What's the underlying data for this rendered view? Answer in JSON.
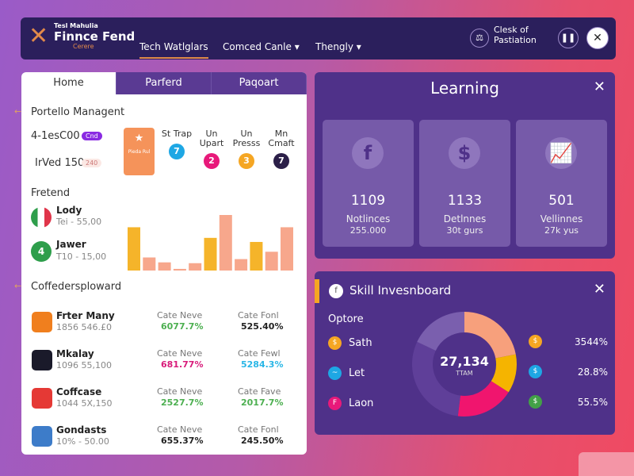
{
  "header": {
    "logo_small": "Tesl Mahulia",
    "logo_main": "Finnce Fend",
    "logo_sub": "Cerere",
    "nav": [
      {
        "label": "Tech Watlglars",
        "active": true
      },
      {
        "label": "Comced Canle ▾"
      },
      {
        "label": "Thengly ▾"
      }
    ],
    "status_line1": "Clesk of",
    "status_line2": "Pastiation",
    "pause_icon": "pause-icon",
    "close_icon": "close-icon"
  },
  "left": {
    "tabs": [
      "Home",
      "Parferd",
      "Paqoart"
    ],
    "portfolio": {
      "title": "Portello Managent",
      "row1": "4-1esC00",
      "row1_badge": "Cnd",
      "row2": "IrVed 150",
      "row2_badge": "240",
      "featured_label": "Pieda Rul",
      "categories": [
        {
          "label": "St Trap",
          "count": "7",
          "color": "#1ea7e4"
        },
        {
          "label": "Un Upart",
          "count": "2",
          "color": "#e8197a"
        },
        {
          "label": "Un Presss",
          "count": "3",
          "color": "#f5a623"
        },
        {
          "label": "Mn Cmaft",
          "count": "7",
          "color": "#2b1f48"
        }
      ]
    },
    "trend": {
      "title": "Fretend",
      "items": [
        {
          "name": "Lody",
          "value": "Tei - 55,00"
        },
        {
          "name": "Jawer",
          "value": "T10 - 15,00",
          "badge": "4"
        }
      ]
    },
    "chart_data": {
      "type": "bar",
      "values": [
        53,
        16,
        10,
        2,
        9,
        40,
        68,
        14,
        35,
        23,
        53
      ],
      "colors": [
        "#f5b42a",
        "#f7a78c",
        "#f7a78c",
        "#f7a78c",
        "#f7a78c",
        "#f5b42a",
        "#f7a78c",
        "#f7a78c",
        "#f5b42a",
        "#f7a78c",
        "#f7a78c"
      ]
    },
    "list": {
      "title": "Coffedersploward",
      "rows": [
        {
          "name": "Frter Many",
          "sub": "1856 546.£0",
          "h1": "Cate Neve",
          "v1": "6077.7%",
          "c1": "#4caf50",
          "h2": "Cate Fonl",
          "v2": "525.40%",
          "c2": "#222",
          "icon_color": "#f07f1e"
        },
        {
          "name": "Mkalay",
          "sub": "1096 55,100",
          "h1": "Cate Neve",
          "v1": "681.77%",
          "c1": "#d81b7a",
          "h2": "Cate Fewl",
          "v2": "5284.3%",
          "c2": "#29b6e6",
          "icon_color": "#1a1a2a"
        },
        {
          "name": "Coffcase",
          "sub": "1044 5X,150",
          "h1": "Cate Neve",
          "v1": "2527.7%",
          "c1": "#4caf50",
          "h2": "Cate Fave",
          "v2": "2017.7%",
          "c2": "#4caf50",
          "icon_color": "#e53935"
        },
        {
          "name": "Gondasts",
          "sub": "10% - 50.00",
          "h1": "Cate Neve",
          "v1": "655.37%",
          "c1": "#222",
          "h2": "Cate Fonl",
          "v2": "245.50%",
          "c2": "#222",
          "icon_color": "#3d7cc9"
        }
      ]
    }
  },
  "learning": {
    "title": "Learning",
    "cards": [
      {
        "icon": "facebook-icon",
        "value": "1109",
        "label": "Notlinces",
        "sub": "255.000"
      },
      {
        "icon": "dollar-icon",
        "value": "1133",
        "label": "Detlnnes",
        "sub": "30t gurs"
      },
      {
        "icon": "growth-chart-icon",
        "value": "501",
        "label": "Vellinnes",
        "sub": "27k yus"
      }
    ]
  },
  "skill": {
    "title": "Skill Invesnboard",
    "options_label": "Optore",
    "center_value": "27,134",
    "center_sub": "TTAM",
    "legend": [
      {
        "label": "Sath",
        "color": "#f5a623",
        "glyph": "$"
      },
      {
        "label": "Let",
        "color": "#1ea7e4",
        "glyph": "~"
      },
      {
        "label": "Laon",
        "color": "#e8197a",
        "glyph": "F"
      }
    ],
    "right": [
      {
        "value": "3544%",
        "color": "#f5a623"
      },
      {
        "value": "28.8%",
        "color": "#1ea7e4"
      },
      {
        "value": "55.5%",
        "color": "#43a047"
      }
    ],
    "chart_data": {
      "type": "pie",
      "slices": [
        {
          "value": 22,
          "color": "#f7a07c"
        },
        {
          "value": 12,
          "color": "#f5b400"
        },
        {
          "value": 18,
          "color": "#f0156e"
        },
        {
          "value": 30,
          "color": "#5f3f99"
        },
        {
          "value": 18,
          "color": "#7a5fae"
        }
      ]
    }
  }
}
